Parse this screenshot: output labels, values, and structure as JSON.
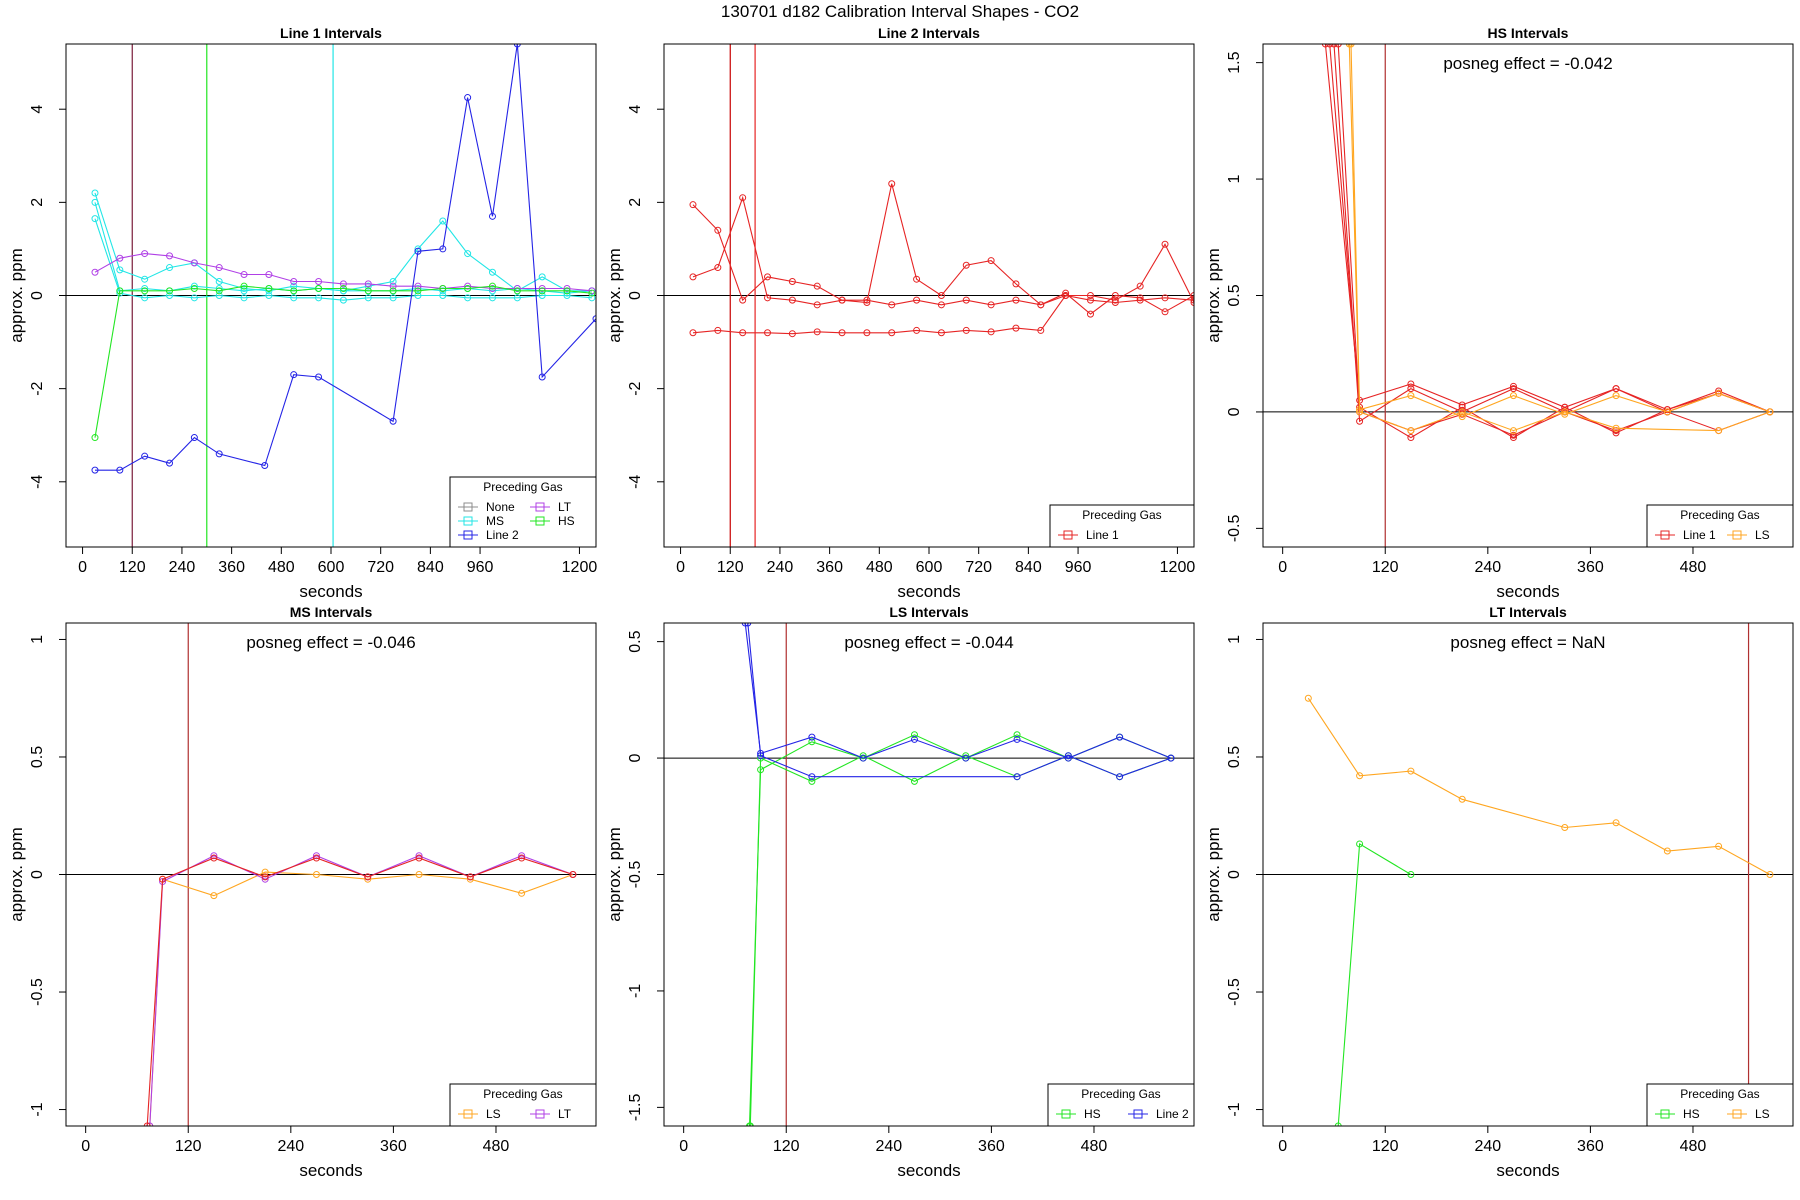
{
  "page_title": "130701  d182   Calibration Interval Shapes - CO2",
  "colors": {
    "None": "#8c8c8c",
    "MS": "#22e6e6",
    "Line 2": "#2424e6",
    "LT": "#b040e6",
    "HS": "#22e622",
    "Line 1": "#e62424",
    "LS": "#ffa620",
    "ref_line": "#000000"
  },
  "chart_data": [
    {
      "type": "line",
      "title": "Line 1 Intervals",
      "xlabel": "seconds",
      "ylabel": "approx. ppm",
      "xlim": [
        -40,
        1240
      ],
      "ylim": [
        -5.4,
        5.4
      ],
      "xticks": [
        0,
        120,
        240,
        360,
        480,
        600,
        720,
        840,
        960,
        1200
      ],
      "yticks": [
        -4,
        -2,
        0,
        2,
        4
      ],
      "vlines": [
        {
          "x": 120,
          "color": "#7a1c3a"
        },
        {
          "x": 300,
          "color": "#22e622"
        },
        {
          "x": 605,
          "color": "#22e6e6"
        }
      ],
      "legend": {
        "title": "Preceding Gas",
        "position": "bottom-right",
        "cols": 2,
        "entries": [
          "None",
          "LT",
          "MS",
          "HS",
          "Line 2"
        ]
      },
      "series": [
        {
          "name": "MS",
          "x": [
            30,
            90,
            150,
            210,
            270,
            330,
            390,
            450,
            510,
            570,
            630,
            690,
            750,
            810,
            870,
            930,
            990,
            1050,
            1110,
            1170,
            1230
          ],
          "y": [
            2.2,
            0.55,
            0.35,
            0.6,
            0.7,
            0.3,
            0.15,
            0.1,
            0.2,
            0.15,
            0.1,
            0.2,
            0.3,
            1.0,
            1.6,
            0.9,
            0.5,
            0.1,
            0.4,
            0.1,
            0.1
          ]
        },
        {
          "name": "MS",
          "x": [
            30,
            90,
            150,
            210,
            270,
            330,
            390,
            450,
            510,
            570,
            630,
            690,
            750,
            810,
            870,
            930,
            990,
            1050,
            1110,
            1170,
            1230
          ],
          "y": [
            2.0,
            0.1,
            0.15,
            0.1,
            0.2,
            0.15,
            0.1,
            0.15,
            0.1,
            0.15,
            0.1,
            0.1,
            0.1,
            0.15,
            0.1,
            0.15,
            0.1,
            0.15,
            0.1,
            0.05,
            0.1
          ]
        },
        {
          "name": "MS",
          "x": [
            30,
            90,
            150,
            210,
            270,
            330,
            390,
            450,
            510,
            570,
            630,
            690,
            750,
            810,
            870,
            930,
            990,
            1050,
            1110,
            1170,
            1230
          ],
          "y": [
            1.65,
            0.05,
            -0.05,
            0.0,
            -0.05,
            0.0,
            -0.05,
            0.0,
            -0.05,
            -0.05,
            -0.1,
            -0.05,
            -0.05,
            0.0,
            0.0,
            -0.05,
            -0.05,
            -0.05,
            0.0,
            0.0,
            -0.05
          ]
        },
        {
          "name": "LT",
          "x": [
            30,
            90,
            150,
            210,
            270,
            330,
            390,
            450,
            510,
            570,
            630,
            690,
            750,
            810,
            870,
            930,
            990,
            1050,
            1110,
            1170,
            1230
          ],
          "y": [
            0.5,
            0.8,
            0.9,
            0.85,
            0.7,
            0.6,
            0.45,
            0.45,
            0.3,
            0.3,
            0.25,
            0.25,
            0.2,
            0.2,
            0.15,
            0.2,
            0.15,
            0.15,
            0.15,
            0.15,
            0.1
          ]
        },
        {
          "name": "HS",
          "x": [
            30,
            90,
            150,
            210,
            270,
            330,
            390,
            450,
            510,
            570,
            630,
            690,
            750,
            810,
            870,
            930,
            990,
            1050,
            1110,
            1170,
            1230
          ],
          "y": [
            -3.05,
            0.1,
            0.1,
            0.1,
            0.15,
            0.1,
            0.2,
            0.15,
            0.1,
            0.15,
            0.15,
            0.1,
            0.1,
            0.1,
            0.15,
            0.15,
            0.2,
            0.1,
            0.1,
            0.1,
            0.05
          ]
        },
        {
          "name": "Line 2",
          "x": [
            30,
            90,
            150,
            210,
            270,
            330,
            440,
            510,
            570,
            750,
            810,
            870,
            930,
            990,
            1050,
            1110,
            1240
          ],
          "y": [
            -3.75,
            -3.75,
            -3.45,
            -3.6,
            -3.05,
            -3.4,
            -3.65,
            -1.7,
            -1.75,
            -2.7,
            0.95,
            1.0,
            4.25,
            1.7,
            5.4,
            -1.75,
            -0.5
          ]
        }
      ]
    },
    {
      "type": "line",
      "title": "Line 2 Intervals",
      "xlabel": "seconds",
      "ylabel": "approx. ppm",
      "xlim": [
        -40,
        1240
      ],
      "ylim": [
        -5.4,
        5.4
      ],
      "xticks": [
        0,
        120,
        240,
        360,
        480,
        600,
        720,
        840,
        960,
        1200
      ],
      "yticks": [
        -4,
        -2,
        0,
        2,
        4
      ],
      "vlines": [
        {
          "x": 120,
          "color": "#c80000"
        },
        {
          "x": 180,
          "color": "#e62424"
        }
      ],
      "legend": {
        "title": "Preceding Gas",
        "position": "bottom-right",
        "cols": 1,
        "entries": [
          "Line 1"
        ]
      },
      "series": [
        {
          "name": "Line 1",
          "x": [
            30,
            90,
            150,
            210,
            270,
            330,
            390,
            450,
            510,
            570,
            630,
            690,
            750,
            810,
            870,
            930,
            990,
            1050,
            1110,
            1170,
            1240
          ],
          "y": [
            1.95,
            1.4,
            -0.1,
            0.4,
            0.3,
            0.2,
            -0.1,
            -0.15,
            2.4,
            0.35,
            0.0,
            0.65,
            0.75,
            0.25,
            -0.2,
            0.0,
            0.0,
            -0.1,
            0.2,
            1.1,
            -0.15
          ]
        },
        {
          "name": "Line 1",
          "x": [
            30,
            90,
            150,
            210,
            270,
            330,
            390,
            450,
            510,
            570,
            630,
            690,
            750,
            810,
            870,
            930,
            990,
            1050,
            1110,
            1170,
            1240
          ],
          "y": [
            0.4,
            0.6,
            2.1,
            -0.05,
            -0.1,
            -0.2,
            -0.1,
            -0.1,
            -0.2,
            -0.1,
            -0.2,
            -0.1,
            -0.2,
            -0.1,
            -0.2,
            0.05,
            -0.4,
            0.0,
            -0.05,
            -0.35,
            0.0
          ]
        },
        {
          "name": "Line 1",
          "x": [
            30,
            90,
            150,
            210,
            270,
            330,
            390,
            450,
            510,
            570,
            630,
            690,
            750,
            810,
            870,
            930,
            990,
            1050,
            1110,
            1170,
            1240
          ],
          "y": [
            -0.8,
            -0.75,
            -0.8,
            -0.8,
            -0.82,
            -0.78,
            -0.8,
            -0.8,
            -0.8,
            -0.75,
            -0.8,
            -0.75,
            -0.78,
            -0.7,
            -0.75,
            0.0,
            -0.1,
            -0.15,
            -0.1,
            -0.05,
            -0.1
          ]
        }
      ]
    },
    {
      "type": "line",
      "title": "HS Intervals",
      "annotation": "posneg effect = -0.042",
      "xlabel": "seconds",
      "ylabel": "approx. ppm",
      "xlim": [
        -23,
        597
      ],
      "ylim": [
        -0.58,
        1.58
      ],
      "xticks": [
        0,
        120,
        240,
        360,
        480
      ],
      "yticks": [
        -0.5,
        0.0,
        0.5,
        1.0,
        1.5
      ],
      "vlines": [
        {
          "x": 120,
          "color": "#b03030"
        }
      ],
      "legend": {
        "title": "Preceding Gas",
        "position": "bottom-right",
        "cols": 2,
        "entries": [
          "Line 1",
          "LS"
        ]
      },
      "series": [
        {
          "name": "Line 1",
          "x": [
            50,
            90,
            150,
            210,
            270,
            330,
            390,
            450,
            510,
            570
          ],
          "y": [
            1.58,
            0.05,
            0.12,
            0.03,
            0.11,
            0.02,
            0.1,
            0.01,
            0.09,
            0.0
          ]
        },
        {
          "name": "Line 1",
          "x": [
            55,
            90,
            150,
            210,
            270,
            330,
            390,
            450,
            510,
            570
          ],
          "y": [
            1.58,
            0.02,
            -0.11,
            0.02,
            -0.11,
            0.02,
            -0.09,
            0.01,
            0.08,
            0.0
          ]
        },
        {
          "name": "Line 1",
          "x": [
            60,
            90,
            150,
            210,
            270,
            330,
            390,
            450,
            510,
            570
          ],
          "y": [
            1.58,
            -0.04,
            0.1,
            0.0,
            0.1,
            0.0,
            0.1,
            0.0,
            0.08,
            0.0
          ]
        },
        {
          "name": "Line 1",
          "x": [
            65,
            90,
            150,
            210,
            270,
            330,
            390,
            450,
            510,
            570
          ],
          "y": [
            1.58,
            0.0,
            -0.08,
            -0.01,
            -0.1,
            0.0,
            -0.08,
            0.0,
            -0.08,
            0.0
          ]
        },
        {
          "name": "LS",
          "x": [
            78,
            90,
            150,
            210,
            270,
            330,
            390,
            510,
            570
          ],
          "y": [
            1.58,
            0.0,
            -0.08,
            0.0,
            -0.08,
            0.0,
            -0.07,
            -0.08,
            0.0
          ]
        },
        {
          "name": "LS",
          "x": [
            80,
            90,
            150,
            210,
            270,
            330,
            390,
            450,
            510,
            570
          ],
          "y": [
            1.58,
            0.01,
            0.07,
            -0.02,
            0.07,
            -0.01,
            0.07,
            0.0,
            0.08,
            0.0
          ]
        }
      ]
    },
    {
      "type": "line",
      "title": "MS Intervals",
      "annotation": "posneg effect = -0.046",
      "xlabel": "seconds",
      "ylabel": "approx. ppm",
      "xlim": [
        -23,
        597
      ],
      "ylim": [
        -1.07,
        1.07
      ],
      "xticks": [
        0,
        120,
        240,
        360,
        480
      ],
      "yticks": [
        -1.0,
        -0.5,
        0.0,
        0.5,
        1.0
      ],
      "vlines": [
        {
          "x": 120,
          "color": "#b03030"
        }
      ],
      "legend": {
        "title": "Preceding Gas",
        "position": "bottom-right",
        "cols": 2,
        "entries": [
          "LS",
          "LT"
        ]
      },
      "series": [
        {
          "name": "LS",
          "x": [
            75,
            90,
            150,
            210,
            270,
            330,
            390,
            450,
            510,
            570
          ],
          "y": [
            -1.07,
            -0.02,
            -0.09,
            0.01,
            0.0,
            -0.02,
            0.0,
            -0.02,
            -0.08,
            0.0
          ]
        },
        {
          "name": "LT",
          "x": [
            75,
            90,
            150,
            210,
            270,
            330,
            390,
            450,
            510,
            570
          ],
          "y": [
            -1.07,
            -0.03,
            0.08,
            -0.02,
            0.08,
            -0.01,
            0.08,
            -0.01,
            0.08,
            0.0
          ]
        },
        {
          "name": "Line 1",
          "x": [
            72,
            90,
            150,
            210,
            270,
            330,
            390,
            450,
            510,
            570
          ],
          "y": [
            -1.07,
            -0.02,
            0.07,
            -0.01,
            0.07,
            -0.01,
            0.07,
            -0.01,
            0.07,
            0.0
          ]
        }
      ]
    },
    {
      "type": "line",
      "title": "LS Intervals",
      "annotation": "posneg effect = -0.044",
      "xlabel": "seconds",
      "ylabel": "approx. ppm",
      "xlim": [
        -23,
        597
      ],
      "ylim": [
        -1.58,
        0.58
      ],
      "xticks": [
        0,
        120,
        240,
        360,
        480
      ],
      "yticks": [
        -1.5,
        -1.0,
        -0.5,
        0.0,
        0.5
      ],
      "vlines": [
        {
          "x": 120,
          "color": "#b03030"
        }
      ],
      "legend": {
        "title": "Preceding Gas",
        "position": "bottom-right",
        "cols": 2,
        "entries": [
          "HS",
          "Line 2"
        ]
      },
      "series": [
        {
          "name": "HS",
          "x": [
            77,
            90,
            150,
            210,
            270,
            330,
            390,
            450,
            510,
            570
          ],
          "y": [
            -1.58,
            -0.05,
            0.07,
            0.0,
            0.1,
            0.0,
            0.1,
            0.0,
            0.09,
            0.0
          ]
        },
        {
          "name": "HS",
          "x": [
            78,
            90,
            150,
            210,
            270,
            330,
            390,
            450,
            510,
            570
          ],
          "y": [
            -1.58,
            0.0,
            -0.1,
            0.01,
            -0.1,
            0.01,
            -0.08,
            0.01,
            -0.08,
            0.0
          ]
        },
        {
          "name": "Line 2",
          "x": [
            72,
            90,
            150,
            210,
            270,
            330,
            390,
            450,
            510,
            570
          ],
          "y": [
            0.58,
            0.02,
            0.09,
            0.0,
            0.08,
            0.0,
            0.08,
            0.0,
            0.09,
            0.0
          ]
        },
        {
          "name": "Line 2",
          "x": [
            75,
            90,
            150,
            390,
            450,
            510,
            570
          ],
          "y": [
            0.58,
            0.01,
            -0.08,
            -0.08,
            0.01,
            -0.08,
            0.0
          ]
        }
      ]
    },
    {
      "type": "line",
      "title": "LT Intervals",
      "annotation": "posneg effect = NaN",
      "xlabel": "seconds",
      "ylabel": "approx. ppm",
      "xlim": [
        -23,
        597
      ],
      "ylim": [
        -1.07,
        1.07
      ],
      "xticks": [
        0,
        120,
        240,
        360,
        480
      ],
      "yticks": [
        -1.0,
        -0.5,
        0.0,
        0.5,
        1.0
      ],
      "vlines": [
        {
          "x": 545,
          "color": "#b03030"
        }
      ],
      "legend": {
        "title": "Preceding Gas",
        "position": "bottom-right",
        "cols": 2,
        "entries": [
          "HS",
          "LS"
        ]
      },
      "series": [
        {
          "name": "LS",
          "x": [
            30,
            90,
            150,
            210,
            330,
            390,
            450,
            510,
            570
          ],
          "y": [
            0.75,
            0.42,
            0.44,
            0.32,
            0.2,
            0.22,
            0.1,
            0.12,
            0.0
          ]
        },
        {
          "name": "HS",
          "x": [
            65,
            90,
            150
          ],
          "y": [
            -1.07,
            0.13,
            0.0
          ]
        }
      ]
    }
  ]
}
